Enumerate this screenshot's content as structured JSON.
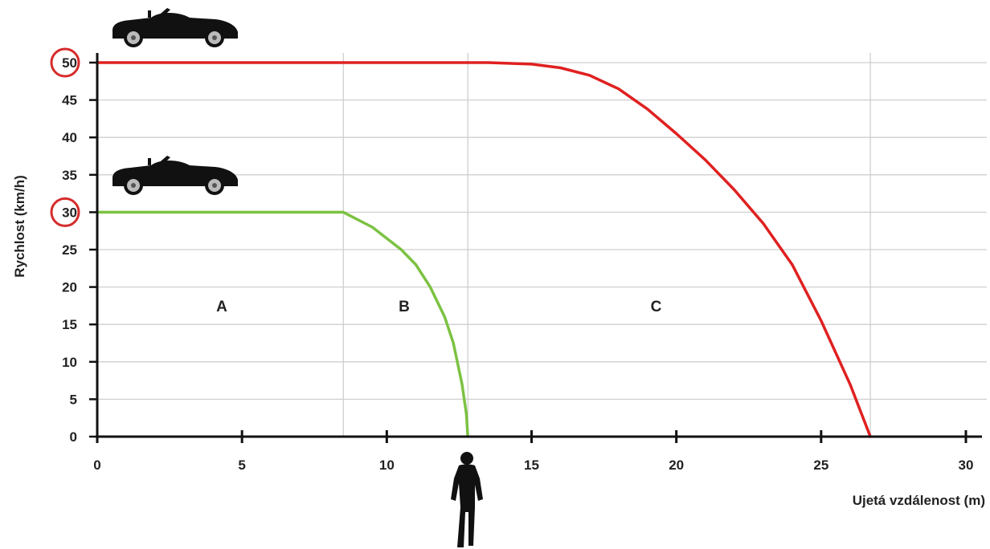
{
  "chart_data": {
    "type": "line",
    "xlabel": "Ujetá vzdálenost (m)",
    "ylabel": "Rychlost (km/h)",
    "xlim": [
      0,
      30
    ],
    "ylim": [
      0,
      50
    ],
    "x_ticks": [
      0,
      5,
      10,
      15,
      20,
      25,
      30
    ],
    "y_ticks": [
      0,
      5,
      10,
      15,
      20,
      25,
      30,
      35,
      40,
      45,
      50
    ],
    "grid": true,
    "highlighted_y_ticks": [
      30,
      50
    ],
    "regions": [
      {
        "label": "A",
        "x": 4.3,
        "y": 17.5
      },
      {
        "label": "B",
        "x": 10.6,
        "y": 17.5
      },
      {
        "label": "C",
        "x": 19.3,
        "y": 17.5
      }
    ],
    "vertical_lines": [
      8.5,
      12.8,
      26.7
    ],
    "series": [
      {
        "color": "#e02020",
        "points": [
          [
            0,
            50
          ],
          [
            8.5,
            50
          ],
          [
            13.5,
            50
          ],
          [
            15,
            49.8
          ],
          [
            16,
            49.3
          ],
          [
            17,
            48.3
          ],
          [
            18,
            46.5
          ],
          [
            19,
            43.8
          ],
          [
            20,
            40.5
          ],
          [
            21,
            37
          ],
          [
            22,
            33
          ],
          [
            23,
            28.5
          ],
          [
            24,
            23
          ],
          [
            25,
            15.5
          ],
          [
            26,
            7
          ],
          [
            26.7,
            0
          ]
        ]
      },
      {
        "color": "#7cc242",
        "points": [
          [
            0,
            30
          ],
          [
            8.5,
            30
          ],
          [
            9.5,
            28
          ],
          [
            10.5,
            25
          ],
          [
            11,
            23
          ],
          [
            11.5,
            20
          ],
          [
            12,
            16
          ],
          [
            12.3,
            12.5
          ],
          [
            12.6,
            7
          ],
          [
            12.75,
            3
          ],
          [
            12.8,
            0
          ]
        ]
      }
    ],
    "icons": [
      {
        "name": "car-icon-50",
        "level": 50
      },
      {
        "name": "car-icon-30",
        "level": 30
      },
      {
        "name": "pedestrian-icon",
        "x": 12.8
      }
    ],
    "colors": {
      "grid": "#cfcfcf",
      "axis": "#111111",
      "circle": "#d62b2b"
    }
  }
}
